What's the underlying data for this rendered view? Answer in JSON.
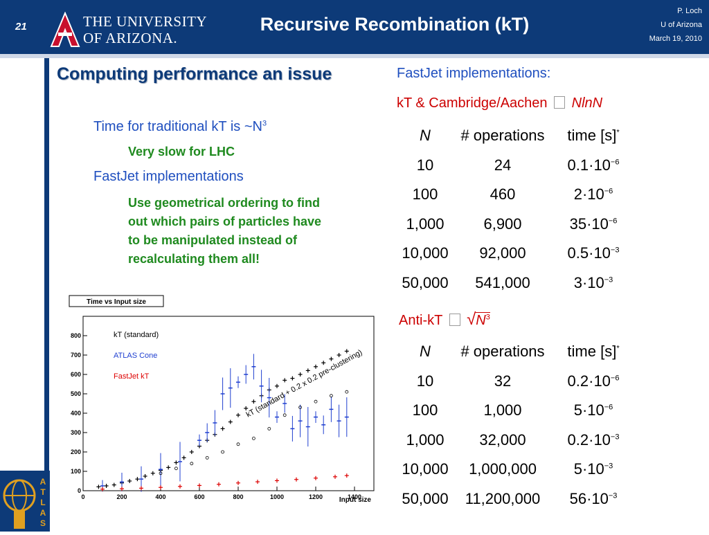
{
  "header": {
    "slide_number": "21",
    "logo_line1": "THE UNIVERSITY",
    "logo_line2": "OF ARIZONA.",
    "title": "Recursive Recombination (kT)",
    "author": "P. Loch",
    "affiliation": "U of Arizona",
    "date": "March 19, 2010"
  },
  "left": {
    "heading": "Computing performance an issue",
    "bullet1": "Time for traditional kT is ~N",
    "bullet1_sup": "3",
    "sub1": "Very slow for LHC",
    "bullet2": "FastJet implementations",
    "sub2": "Use geometrical ordering to find out which pairs of particles have to be manipulated instead of recalculating them all!"
  },
  "right": {
    "fastjet_heading": "FastJet implementations:",
    "kt_label": "kT & Cambridge/Aachen",
    "kt_scaling": "NlnN",
    "antikt_label": "Anti-kT",
    "antikt_scaling": "N",
    "antikt_sup": "3",
    "columns": [
      "N",
      "# operations",
      "time [s]"
    ],
    "kt_table": [
      {
        "n": "10",
        "ops": "24",
        "mant": "0.1",
        "exp": "−6"
      },
      {
        "n": "100",
        "ops": "460",
        "mant": "2",
        "exp": "−6"
      },
      {
        "n": "1,000",
        "ops": "6,900",
        "mant": "35",
        "exp": "−6"
      },
      {
        "n": "10,000",
        "ops": "92,000",
        "mant": "0.5",
        "exp": "−3"
      },
      {
        "n": "50,000",
        "ops": "541,000",
        "mant": "3",
        "exp": "−3"
      }
    ],
    "antikt_table": [
      {
        "n": "10",
        "ops": "32",
        "mant": "0.2",
        "exp": "−6"
      },
      {
        "n": "100",
        "ops": "1,000",
        "mant": "5",
        "exp": "−6"
      },
      {
        "n": "1,000",
        "ops": "32,000",
        "mant": "0.2",
        "exp": "−3"
      },
      {
        "n": "10,000",
        "ops": "1,000,000",
        "mant": "5",
        "exp": "−3"
      },
      {
        "n": "50,000",
        "ops": "11,200,000",
        "mant": "56",
        "exp": "−3"
      }
    ]
  },
  "chart_data": {
    "type": "scatter",
    "title": "Time vs Input size",
    "xlabel": "Input size",
    "ylabel": "",
    "xlim": [
      0,
      1500
    ],
    "ylim": [
      0,
      900
    ],
    "x_ticks": [
      0,
      200,
      400,
      600,
      800,
      1000,
      1200,
      1400
    ],
    "y_ticks": [
      0,
      100,
      200,
      300,
      400,
      500,
      600,
      700,
      800
    ],
    "annotation": "kT (standard + 0.2 x 0.2 pre-clustering)",
    "legend_position": "top-left",
    "series": [
      {
        "name": "kT (standard)",
        "color": "#000000",
        "x": [
          80,
          120,
          160,
          200,
          240,
          280,
          320,
          360,
          400,
          440,
          480,
          520,
          560,
          600,
          640,
          680,
          720,
          760,
          800,
          840,
          880,
          920,
          960,
          1000,
          1040,
          1080,
          1120,
          1160,
          1200,
          1240,
          1280,
          1320,
          1360
        ],
        "y": [
          20,
          25,
          30,
          40,
          50,
          60,
          75,
          90,
          105,
          120,
          145,
          170,
          200,
          230,
          260,
          290,
          320,
          355,
          390,
          425,
          460,
          490,
          520,
          540,
          570,
          580,
          600,
          620,
          640,
          660,
          680,
          700,
          720
        ]
      },
      {
        "name": "ATLAS Cone",
        "color": "#1f3fd0",
        "x": [
          100,
          200,
          300,
          400,
          500,
          600,
          640,
          680,
          720,
          760,
          800,
          840,
          880,
          920,
          960,
          1000,
          1040,
          1080,
          1120,
          1160,
          1200,
          1240,
          1280,
          1320,
          1360
        ],
        "y": [
          25,
          45,
          60,
          110,
          150,
          260,
          300,
          350,
          500,
          530,
          560,
          600,
          640,
          540,
          480,
          380,
          450,
          320,
          360,
          330,
          380,
          340,
          420,
          360,
          380
        ]
      },
      {
        "name": "FastJet kT",
        "color": "#dd0000",
        "x": [
          100,
          200,
          300,
          400,
          500,
          600,
          700,
          800,
          900,
          1000,
          1100,
          1200,
          1300,
          1360
        ],
        "y": [
          8,
          10,
          13,
          17,
          22,
          27,
          33,
          40,
          46,
          52,
          58,
          65,
          72,
          78
        ]
      },
      {
        "name": "kT (standard + 0.2 x 0.2 pre-clustering)",
        "color": "#000000",
        "x": [
          400,
          480,
          560,
          640,
          720,
          800,
          880,
          960,
          1040,
          1120,
          1200,
          1280,
          1360
        ],
        "y": [
          90,
          115,
          140,
          170,
          200,
          240,
          270,
          320,
          390,
          430,
          460,
          490,
          510
        ]
      }
    ]
  }
}
